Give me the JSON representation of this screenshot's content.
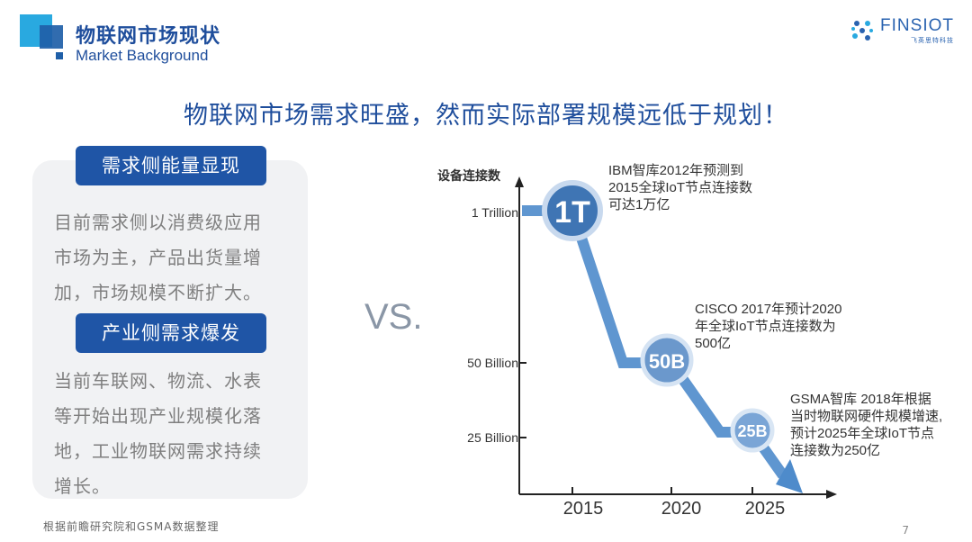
{
  "header": {
    "title_cn": "物联网市场现状",
    "title_en": "Market Background"
  },
  "brand": {
    "name": "FINSIOT",
    "subtitle": "飞英思特科技"
  },
  "headline": "物联网市场需求旺盛，然而实际部署规模远低于规划！",
  "left": {
    "section1_title": "需求侧能量显现",
    "section1_lines": [
      "目前需求侧以消费级应用",
      "市场为主，产品出货量增",
      "加，市场规模不断扩大。"
    ],
    "section2_title": "产业侧需求爆发",
    "section2_lines": [
      "当前车联网、物流、水表",
      "等开始出现产业规模化落",
      "地，工业物联网需求持续",
      "增长。"
    ]
  },
  "vs_text": "VS.",
  "footer": {
    "source": "根据前瞻研究院和GSMA数据整理",
    "page": "7"
  },
  "colors": {
    "primary": "#1f55a6",
    "accent": "#29a9e0",
    "line": "#4e8bcb",
    "bubble_dark": "#3f75b4",
    "bubble_light": "#7aa5d6"
  },
  "chart_data": {
    "type": "line",
    "ylabel": "设备连接数",
    "y_ticks": [
      "1 Trillion",
      "50 Billion",
      "25 Billion"
    ],
    "x_ticks": [
      "2015",
      "2020",
      "2025"
    ],
    "points": [
      {
        "label": "1T",
        "year": 2015,
        "value": "1 Trillion",
        "note": [
          "IBM智库2012年预测到",
          "2015全球IoT节点连接数",
          "可达1万亿"
        ]
      },
      {
        "label": "50B",
        "year": 2020,
        "value": "50 Billion",
        "note": [
          "CISCO 2017年预计2020",
          "年全球IoT节点连接数为",
          "500亿"
        ]
      },
      {
        "label": "25B",
        "year": 2025,
        "value": "25 Billion",
        "note": [
          "GSMA智库 2018年根据",
          "当时物联网硬件规模增速,",
          "预计2025年全球IoT节点",
          "连接数为250亿"
        ]
      }
    ]
  }
}
